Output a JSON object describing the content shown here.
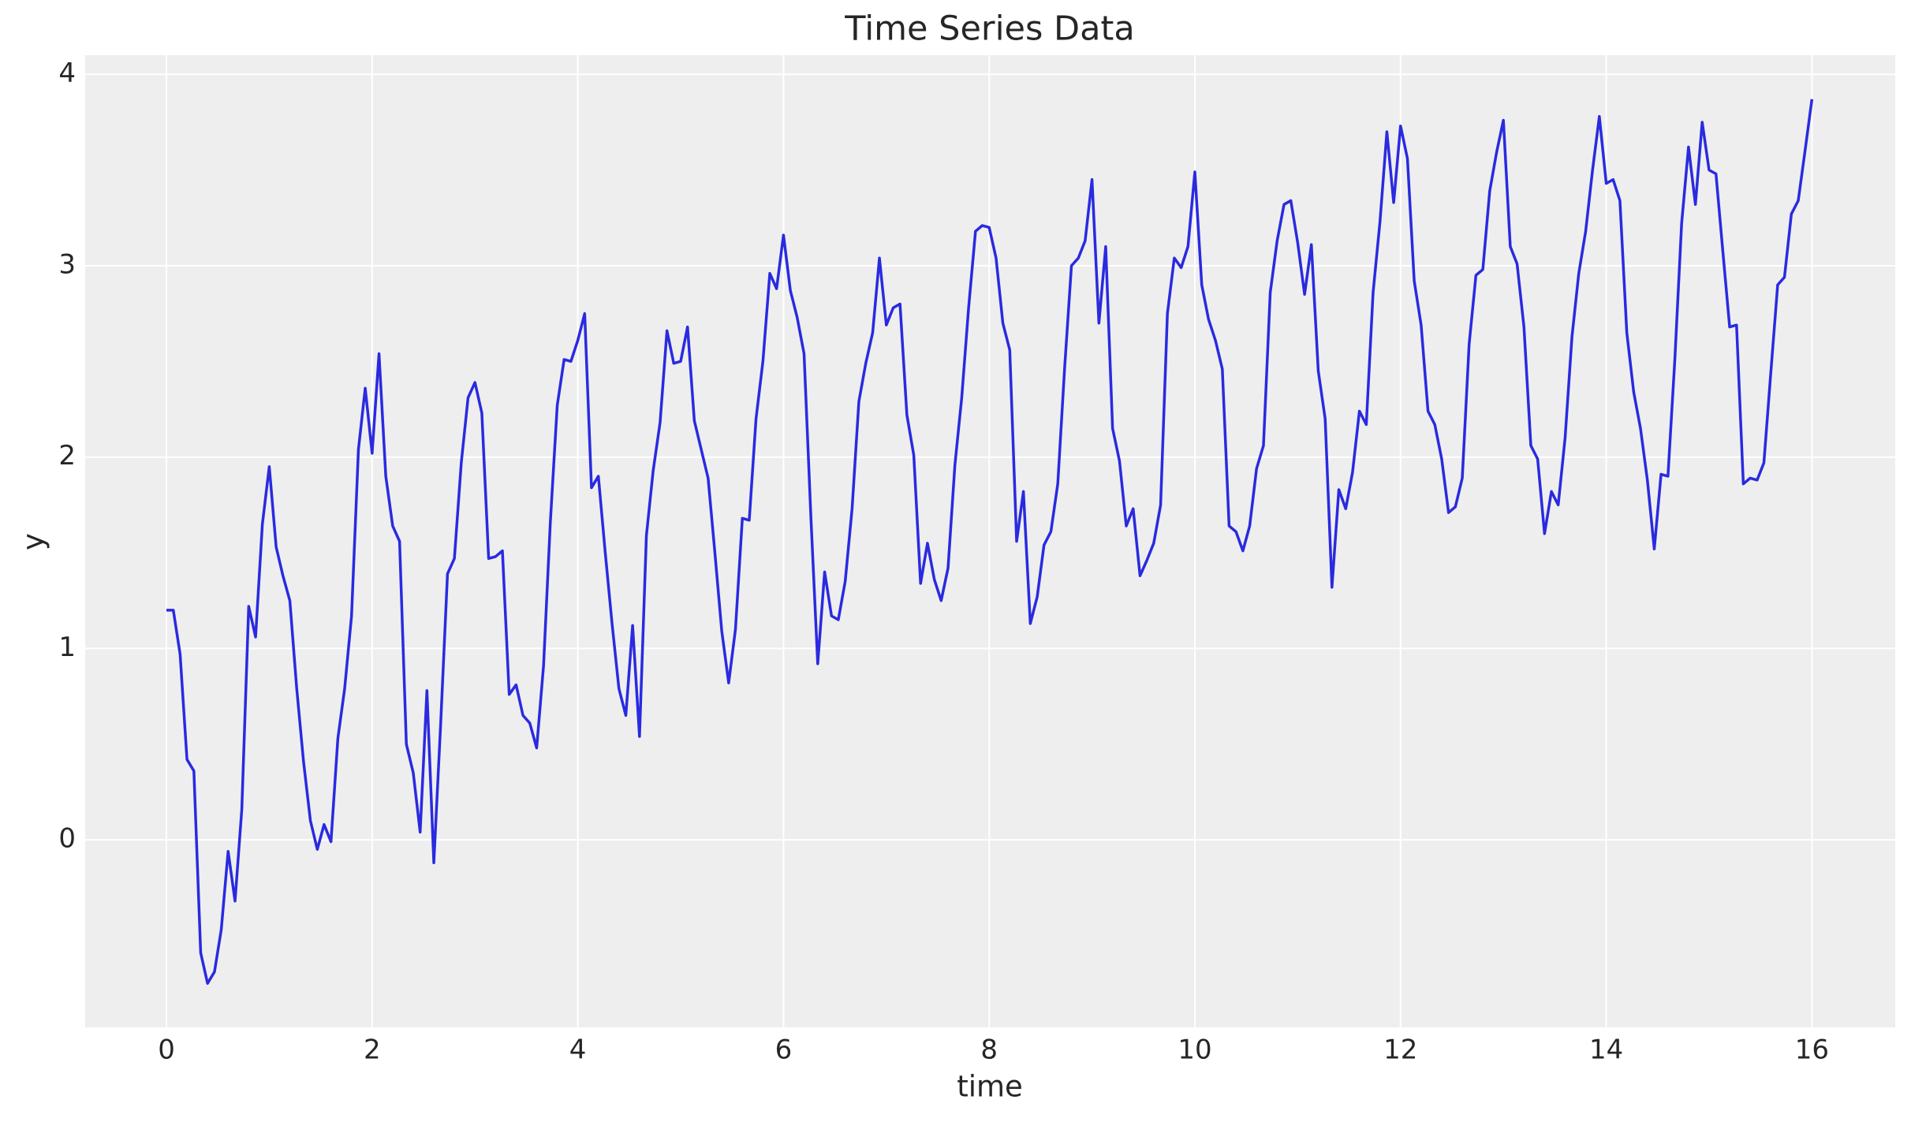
{
  "chart_data": {
    "type": "line",
    "title": "Time Series Data",
    "x_label": "time",
    "y_label": "y",
    "xlim": [
      -0.79,
      16.81
    ],
    "ylim": [
      -0.98,
      4.1
    ],
    "xticks": [
      0,
      2,
      4,
      6,
      8,
      10,
      12,
      14,
      16
    ],
    "yticks": [
      0,
      1,
      2,
      3,
      4
    ],
    "grid": true,
    "x": [
      0,
      0.067,
      0.133,
      0.2,
      0.267,
      0.333,
      0.4,
      0.467,
      0.533,
      0.6,
      0.667,
      0.733,
      0.8,
      0.867,
      0.933,
      1,
      1.067,
      1.133,
      1.2,
      1.267,
      1.333,
      1.4,
      1.467,
      1.533,
      1.6,
      1.667,
      1.733,
      1.8,
      1.867,
      1.933,
      2,
      2.067,
      2.133,
      2.2,
      2.267,
      2.333,
      2.4,
      2.467,
      2.533,
      2.6,
      2.667,
      2.733,
      2.8,
      2.867,
      2.933,
      3,
      3.067,
      3.133,
      3.2,
      3.267,
      3.333,
      3.4,
      3.467,
      3.533,
      3.6,
      3.667,
      3.733,
      3.8,
      3.867,
      3.933,
      4,
      4.067,
      4.133,
      4.2,
      4.267,
      4.333,
      4.4,
      4.467,
      4.533,
      4.6,
      4.667,
      4.733,
      4.8,
      4.867,
      4.933,
      5,
      5.067,
      5.133,
      5.2,
      5.267,
      5.333,
      5.4,
      5.467,
      5.533,
      5.6,
      5.667,
      5.733,
      5.8,
      5.867,
      5.933,
      6,
      6.067,
      6.133,
      6.2,
      6.267,
      6.333,
      6.4,
      6.467,
      6.533,
      6.6,
      6.667,
      6.733,
      6.8,
      6.867,
      6.933,
      7,
      7.067,
      7.133,
      7.2,
      7.267,
      7.333,
      7.4,
      7.467,
      7.533,
      7.6,
      7.667,
      7.733,
      7.8,
      7.867,
      7.933,
      8,
      8.067,
      8.133,
      8.2,
      8.267,
      8.333,
      8.4,
      8.467,
      8.533,
      8.6,
      8.667,
      8.733,
      8.8,
      8.867,
      8.933,
      9,
      9.067,
      9.133,
      9.2,
      9.267,
      9.333,
      9.4,
      9.467,
      9.533,
      9.6,
      9.667,
      9.733,
      9.8,
      9.867,
      9.933,
      10,
      10.067,
      10.133,
      10.2,
      10.267,
      10.333,
      10.4,
      10.467,
      10.533,
      10.6,
      10.667,
      10.733,
      10.8,
      10.867,
      10.933,
      11,
      11.067,
      11.133,
      11.2,
      11.267,
      11.333,
      11.4,
      11.467,
      11.533,
      11.6,
      11.667,
      11.733,
      11.8,
      11.867,
      11.933,
      12,
      12.067,
      12.133,
      12.2,
      12.267,
      12.333,
      12.4,
      12.467,
      12.533,
      12.6,
      12.667,
      12.733,
      12.8,
      12.867,
      12.933,
      13,
      13.067,
      13.133,
      13.2,
      13.267,
      13.333,
      13.4,
      13.467,
      13.533,
      13.6,
      13.667,
      13.733,
      13.8,
      13.867,
      13.933,
      14,
      14.067,
      14.133,
      14.2,
      14.267,
      14.333,
      14.4,
      14.467,
      14.533,
      14.6,
      14.667,
      14.733,
      14.8,
      14.867,
      14.933,
      15,
      15.067,
      15.133,
      15.2,
      15.267,
      15.333,
      15.4,
      15.467,
      15.533,
      15.6,
      15.667,
      15.733,
      15.8,
      15.867,
      15.933,
      16
    ],
    "series": [
      {
        "color": "#2a2ae0",
        "values": [
          1.2,
          1.2,
          0.97,
          0.42,
          0.36,
          -0.59,
          -0.75,
          -0.69,
          -0.47,
          -0.06,
          -0.32,
          0.16,
          1.22,
          1.06,
          1.65,
          1.95,
          1.53,
          1.38,
          1.25,
          0.79,
          0.41,
          0.1,
          -0.05,
          0.08,
          -0.01,
          0.53,
          0.79,
          1.17,
          2.04,
          2.36,
          2.02,
          2.54,
          1.9,
          1.64,
          1.56,
          0.5,
          0.35,
          0.04,
          0.78,
          -0.12,
          0.61,
          1.39,
          1.47,
          1.97,
          2.31,
          2.39,
          2.23,
          1.47,
          1.48,
          1.51,
          0.76,
          0.81,
          0.65,
          0.61,
          0.48,
          0.91,
          1.66,
          2.27,
          2.51,
          2.5,
          2.61,
          2.75,
          1.84,
          1.9,
          1.5,
          1.13,
          0.79,
          0.65,
          1.12,
          0.54,
          1.59,
          1.93,
          2.18,
          2.66,
          2.49,
          2.5,
          2.68,
          2.19,
          2.04,
          1.89,
          1.5,
          1.09,
          0.82,
          1.1,
          1.68,
          1.67,
          2.2,
          2.5,
          2.96,
          2.88,
          3.16,
          2.87,
          2.73,
          2.54,
          1.68,
          0.92,
          1.4,
          1.17,
          1.15,
          1.35,
          1.73,
          2.29,
          2.49,
          2.65,
          3.04,
          2.69,
          2.78,
          2.8,
          2.22,
          2.01,
          1.34,
          1.55,
          1.36,
          1.25,
          1.42,
          1.96,
          2.31,
          2.78,
          3.18,
          3.21,
          3.2,
          3.04,
          2.7,
          2.56,
          1.56,
          1.82,
          1.13,
          1.27,
          1.54,
          1.61,
          1.86,
          2.46,
          3.0,
          3.04,
          3.13,
          3.45,
          2.7,
          3.1,
          2.15,
          1.98,
          1.64,
          1.73,
          1.38,
          1.46,
          1.55,
          1.75,
          2.75,
          3.04,
          2.99,
          3.1,
          3.49,
          2.9,
          2.72,
          2.61,
          2.46,
          1.64,
          1.61,
          1.51,
          1.64,
          1.94,
          2.06,
          2.86,
          3.13,
          3.32,
          3.34,
          3.12,
          2.85,
          3.11,
          2.45,
          2.2,
          1.32,
          1.83,
          1.73,
          1.92,
          2.24,
          2.17,
          2.86,
          3.23,
          3.7,
          3.33,
          3.73,
          3.56,
          2.92,
          2.69,
          2.24,
          2.17,
          1.99,
          1.71,
          1.74,
          1.89,
          2.59,
          2.95,
          2.98,
          3.39,
          3.59,
          3.76,
          3.1,
          3.01,
          2.68,
          2.06,
          1.99,
          1.6,
          1.82,
          1.75,
          2.1,
          2.63,
          2.96,
          3.18,
          3.5,
          3.78,
          3.43,
          3.45,
          3.34,
          2.65,
          2.34,
          2.15,
          1.88,
          1.52,
          1.91,
          1.9,
          2.51,
          3.22,
          3.62,
          3.32,
          3.75,
          3.5,
          3.48,
          3.08,
          2.68,
          2.69,
          1.86,
          1.89,
          1.88,
          1.97,
          2.44,
          2.9,
          2.94,
          3.27,
          3.34,
          3.6,
          3.87
        ]
      }
    ]
  }
}
